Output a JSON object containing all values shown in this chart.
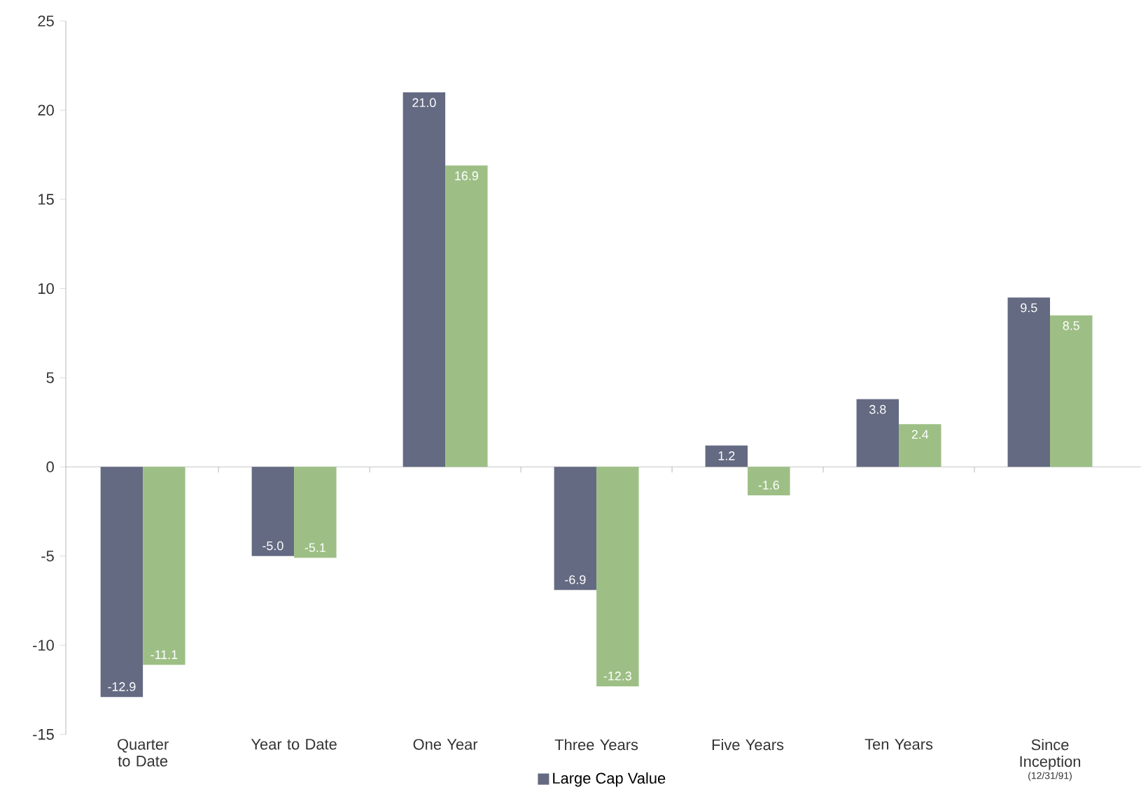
{
  "chart_data": {
    "type": "bar",
    "categories": [
      "Quarter to Date",
      "Year to Date",
      "One Year",
      "Three Years",
      "Five Years",
      "Ten Years",
      "Since Inception"
    ],
    "series": [
      {
        "name": "Large Cap Value",
        "color": "#646a82",
        "values": [
          -12.9,
          -5.0,
          21.0,
          -6.9,
          1.2,
          3.8,
          9.5
        ],
        "value_labels": [
          "-12.9",
          "-5.0",
          "21.0",
          "-6.9",
          "1.2",
          "3.8",
          "9.5"
        ]
      },
      {
        "color": "#9dbf85",
        "values": [
          -11.1,
          -5.1,
          16.9,
          -12.3,
          -1.6,
          2.4,
          8.5
        ],
        "value_labels": [
          "-11.1",
          "-5.1",
          "16.9",
          "-12.3",
          "-1.6",
          "2.4",
          "8.5"
        ]
      }
    ],
    "ylim": [
      -15,
      25
    ],
    "yticks": [
      -15,
      -10,
      -5,
      0,
      5,
      10,
      15,
      20,
      25
    ],
    "legend": "bottom",
    "annotations": [
      "(12/31/91)"
    ]
  }
}
